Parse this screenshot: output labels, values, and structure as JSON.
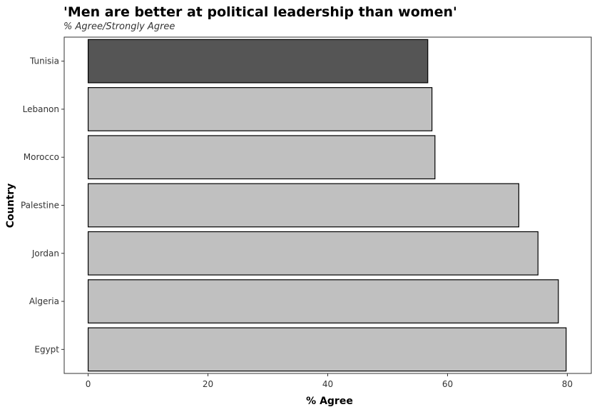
{
  "chart_data": {
    "type": "bar",
    "orientation": "horizontal",
    "title": "'Men are better at political leadership than women'",
    "subtitle": "% Agree/Strongly Agree",
    "xlabel": "% Agree",
    "ylabel": "Country",
    "categories": [
      "Tunisia",
      "Lebanon",
      "Morocco",
      "Palestine",
      "Jordan",
      "Algeria",
      "Egypt"
    ],
    "values": [
      56.7,
      57.4,
      57.9,
      71.9,
      75.1,
      78.5,
      79.8
    ],
    "highlight": "Tunisia",
    "colors": {
      "highlight": "#555555",
      "default": "#c0c0c0",
      "border": "#000000"
    },
    "xlim": [
      -4,
      84
    ],
    "xticks": [
      0,
      20,
      40,
      60,
      80
    ],
    "grid": false
  }
}
